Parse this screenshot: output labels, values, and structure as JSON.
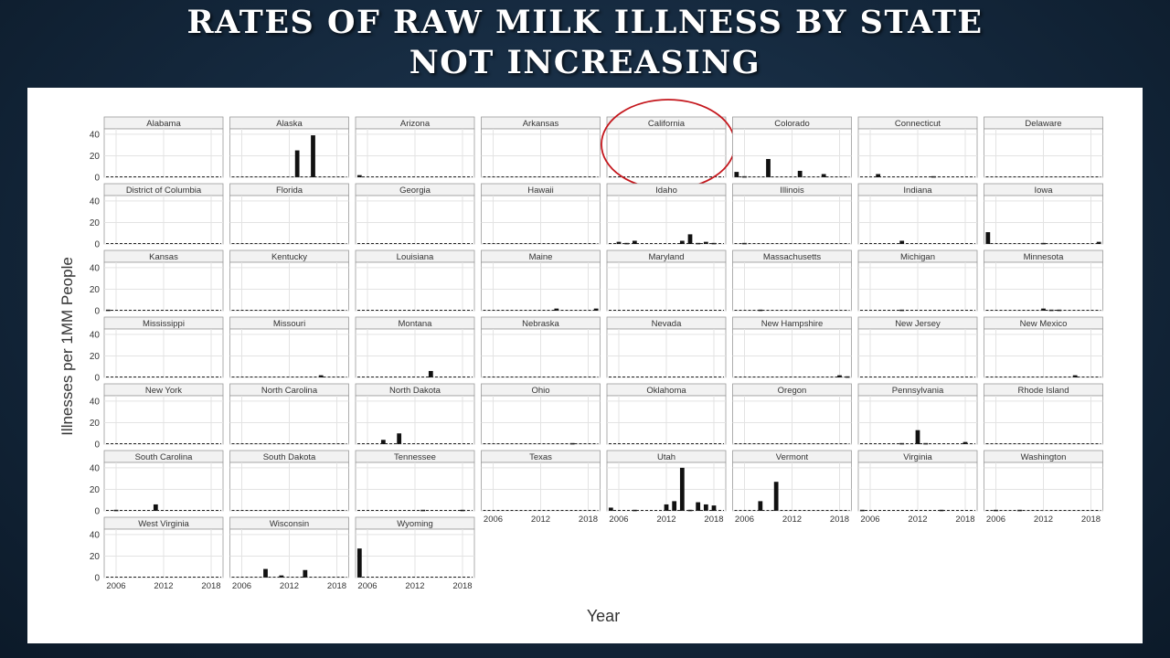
{
  "slide": {
    "title_line1": "RATES OF RAW MILK ILLNESS BY STATE",
    "title_line2": "NOT INCREASING"
  },
  "colors": {
    "bar": "#111111",
    "strip_fill": "#f2f2f2",
    "panel_border": "#9a9a9a",
    "grid": "#e3e3e3",
    "highlight_circle": "#c4161c"
  },
  "chart_data": {
    "type": "bar",
    "layout": "facet-grid",
    "xlabel": "Year",
    "ylabel": "Illnesses per 1MM People",
    "x": [
      2005,
      2006,
      2007,
      2008,
      2009,
      2010,
      2011,
      2012,
      2013,
      2014,
      2015,
      2016,
      2017,
      2018,
      2019
    ],
    "xticks": [
      2006,
      2012,
      2018
    ],
    "xlim": [
      2004.5,
      2019.5
    ],
    "yticks": [
      0,
      20,
      40
    ],
    "ylim": [
      0,
      45
    ],
    "grid": true,
    "highlighted_facet": "California",
    "facets": [
      {
        "name": "Alabama",
        "values": [
          0,
          0,
          0,
          0,
          0,
          0,
          0,
          0,
          0,
          0,
          0,
          0,
          0,
          0,
          0
        ]
      },
      {
        "name": "Alaska",
        "values": [
          0,
          0,
          0,
          0,
          0,
          0,
          0,
          0,
          25,
          0,
          39,
          0,
          0,
          0,
          0
        ]
      },
      {
        "name": "Arizona",
        "values": [
          2,
          0,
          0,
          0,
          0,
          0,
          0,
          0,
          0,
          0,
          0,
          0,
          0,
          0,
          0
        ]
      },
      {
        "name": "Arkansas",
        "values": [
          0,
          0,
          0,
          0,
          0,
          0,
          0,
          0,
          0,
          0,
          0,
          0,
          0,
          0,
          0
        ]
      },
      {
        "name": "California",
        "values": [
          0,
          0,
          0,
          0,
          0,
          0,
          0,
          0,
          0,
          0,
          0,
          0,
          0,
          0,
          0
        ]
      },
      {
        "name": "Colorado",
        "values": [
          5,
          1,
          0,
          0,
          17,
          0,
          0,
          0,
          6,
          0,
          0,
          3,
          0,
          0,
          0
        ]
      },
      {
        "name": "Connecticut",
        "values": [
          0,
          0,
          3,
          0,
          0,
          0,
          0,
          0,
          0,
          1,
          0,
          0,
          0,
          0,
          0
        ]
      },
      {
        "name": "Delaware",
        "values": [
          0,
          0,
          0,
          0,
          0,
          0,
          0,
          0,
          0,
          0,
          0,
          0,
          0,
          0,
          0
        ]
      },
      {
        "name": "District of Columbia",
        "values": [
          0,
          0,
          0,
          0,
          0,
          0,
          0,
          0,
          0,
          0,
          0,
          0,
          0,
          0,
          0
        ]
      },
      {
        "name": "Florida",
        "values": [
          0,
          0,
          0,
          0,
          0,
          0,
          0,
          0,
          0,
          0,
          0,
          0,
          0,
          0,
          0
        ]
      },
      {
        "name": "Georgia",
        "values": [
          0,
          0,
          0,
          0,
          0,
          0,
          0,
          0,
          0,
          0,
          0,
          0,
          0,
          0,
          0
        ]
      },
      {
        "name": "Hawaii",
        "values": [
          0,
          0,
          0,
          0,
          0,
          0,
          0,
          0,
          0,
          0,
          0,
          0,
          0,
          0,
          0
        ]
      },
      {
        "name": "Idaho",
        "values": [
          0,
          2,
          1,
          3,
          0,
          0,
          0,
          0,
          0,
          3,
          9,
          1,
          2,
          1,
          0
        ]
      },
      {
        "name": "Illinois",
        "values": [
          0,
          1,
          0,
          0,
          0,
          0,
          0,
          0,
          0,
          0,
          0,
          0,
          0,
          0,
          0
        ]
      },
      {
        "name": "Indiana",
        "values": [
          0,
          0,
          0,
          0,
          0,
          3,
          0,
          0,
          0,
          0,
          0,
          0,
          0,
          0,
          0
        ]
      },
      {
        "name": "Iowa",
        "values": [
          11,
          0,
          0,
          0,
          0,
          0,
          0,
          1,
          0,
          0,
          0,
          0,
          0,
          0,
          2
        ]
      },
      {
        "name": "Kansas",
        "values": [
          1,
          0,
          0,
          0,
          0,
          0,
          0,
          0,
          0,
          0,
          0,
          0,
          0,
          0,
          0
        ]
      },
      {
        "name": "Kentucky",
        "values": [
          0,
          0,
          0,
          0,
          0,
          0,
          0,
          0,
          0,
          0,
          0,
          0,
          0,
          0,
          0
        ]
      },
      {
        "name": "Louisiana",
        "values": [
          0,
          0,
          0,
          0,
          0,
          0,
          0,
          0,
          0,
          0,
          0,
          0,
          0,
          0,
          0
        ]
      },
      {
        "name": "Maine",
        "values": [
          0,
          0,
          0,
          0,
          0,
          0,
          0,
          0,
          0,
          2,
          0,
          0,
          0,
          0,
          2
        ]
      },
      {
        "name": "Maryland",
        "values": [
          0,
          0,
          0,
          0,
          0,
          0,
          0,
          0,
          0,
          0,
          0,
          0,
          0,
          0,
          0
        ]
      },
      {
        "name": "Massachusetts",
        "values": [
          0,
          0,
          0,
          1,
          0,
          0,
          0,
          0,
          0,
          0,
          0,
          0,
          0,
          0,
          0
        ]
      },
      {
        "name": "Michigan",
        "values": [
          0,
          0,
          0,
          0,
          0,
          1,
          0,
          0,
          0,
          0,
          0,
          0,
          0,
          0,
          0
        ]
      },
      {
        "name": "Minnesota",
        "values": [
          0,
          0,
          0,
          0,
          0,
          0,
          0,
          2,
          1,
          1,
          0,
          0,
          0,
          0,
          0
        ]
      },
      {
        "name": "Mississippi",
        "values": [
          0,
          0,
          0,
          0,
          0,
          0,
          0,
          0,
          0,
          0,
          0,
          0,
          0,
          0,
          0
        ]
      },
      {
        "name": "Missouri",
        "values": [
          0,
          0,
          0,
          0,
          0,
          0,
          0,
          0,
          0,
          0,
          0,
          2,
          0,
          0,
          0
        ]
      },
      {
        "name": "Montana",
        "values": [
          0,
          0,
          0,
          0,
          0,
          0,
          0,
          0,
          0,
          6,
          0,
          0,
          0,
          0,
          0
        ]
      },
      {
        "name": "Nebraska",
        "values": [
          0,
          0,
          0,
          0,
          0,
          0,
          0,
          0,
          0,
          0,
          0,
          0,
          0,
          0,
          0
        ]
      },
      {
        "name": "Nevada",
        "values": [
          0,
          0,
          0,
          0,
          0,
          0,
          0,
          0,
          0,
          0,
          0,
          0,
          0,
          0,
          0
        ]
      },
      {
        "name": "New Hampshire",
        "values": [
          0,
          0,
          0,
          0,
          0,
          0,
          0,
          0,
          0,
          0,
          0,
          0,
          0,
          2,
          1
        ]
      },
      {
        "name": "New Jersey",
        "values": [
          0,
          0,
          0,
          0,
          0,
          0,
          0,
          0,
          0,
          0,
          0,
          0,
          0,
          0,
          0
        ]
      },
      {
        "name": "New Mexico",
        "values": [
          0,
          0,
          0,
          0,
          0,
          0,
          0,
          0,
          0,
          0,
          0,
          2,
          0,
          0,
          0
        ]
      },
      {
        "name": "New York",
        "values": [
          0,
          0,
          0,
          0,
          0,
          0,
          0,
          0,
          0,
          0,
          0,
          0,
          0,
          0,
          0
        ]
      },
      {
        "name": "North Carolina",
        "values": [
          0,
          0,
          0,
          0,
          0,
          0,
          0,
          0,
          0,
          0,
          0,
          0,
          0,
          0,
          0
        ]
      },
      {
        "name": "North Dakota",
        "values": [
          0,
          0,
          0,
          4,
          0,
          10,
          0,
          0,
          0,
          0,
          0,
          0,
          0,
          0,
          0
        ]
      },
      {
        "name": "Ohio",
        "values": [
          0,
          0,
          0,
          0,
          0,
          0,
          0,
          0,
          0,
          0,
          0,
          1,
          0,
          0,
          0
        ]
      },
      {
        "name": "Oklahoma",
        "values": [
          0,
          0,
          0,
          0,
          0,
          0,
          0,
          0,
          0,
          0,
          0,
          0,
          0,
          0,
          0
        ]
      },
      {
        "name": "Oregon",
        "values": [
          0,
          0,
          0,
          0,
          0,
          0,
          0,
          0,
          0,
          0,
          0,
          0,
          0,
          0,
          0
        ]
      },
      {
        "name": "Pennsylvania",
        "values": [
          0,
          0,
          0,
          0,
          0,
          1,
          0,
          13,
          1,
          0,
          0,
          0,
          0,
          2,
          0
        ]
      },
      {
        "name": "Rhode Island",
        "values": [
          0,
          0,
          0,
          0,
          0,
          0,
          0,
          0,
          0,
          0,
          0,
          0,
          0,
          0,
          0
        ]
      },
      {
        "name": "South Carolina",
        "values": [
          0,
          1,
          0,
          0,
          0,
          0,
          6,
          0,
          0,
          0,
          0,
          0,
          0,
          0,
          0
        ]
      },
      {
        "name": "South Dakota",
        "values": [
          0,
          0,
          0,
          0,
          0,
          0,
          0,
          0,
          0,
          0,
          0,
          0,
          0,
          0,
          0
        ]
      },
      {
        "name": "Tennessee",
        "values": [
          0,
          0,
          0,
          0,
          0,
          0,
          0,
          0,
          1,
          0,
          0,
          0,
          0,
          1,
          0
        ]
      },
      {
        "name": "Texas",
        "values": [
          0,
          0,
          0,
          0,
          0,
          0,
          0,
          0,
          0,
          0,
          0,
          0,
          0,
          0,
          0
        ]
      },
      {
        "name": "Utah",
        "values": [
          3,
          0,
          0,
          1,
          0,
          0,
          0,
          6,
          9,
          40,
          1,
          8,
          6,
          5,
          0
        ]
      },
      {
        "name": "Vermont",
        "values": [
          0,
          0,
          0,
          9,
          0,
          27,
          0,
          0,
          0,
          0,
          0,
          0,
          0,
          0,
          0
        ]
      },
      {
        "name": "Virginia",
        "values": [
          1,
          0,
          0,
          0,
          0,
          0,
          0,
          0,
          0,
          0,
          1,
          0,
          0,
          0,
          0
        ]
      },
      {
        "name": "Washington",
        "values": [
          0,
          1,
          0,
          0,
          1,
          0,
          0,
          0,
          0,
          0,
          0,
          0,
          0,
          0,
          0
        ]
      },
      {
        "name": "West Virginia",
        "values": [
          0,
          0,
          0,
          0,
          0,
          0,
          0,
          0,
          0,
          0,
          0,
          0,
          0,
          0,
          0
        ]
      },
      {
        "name": "Wisconsin",
        "values": [
          0,
          0,
          0,
          0,
          8,
          0,
          2,
          0,
          0,
          7,
          0,
          0,
          0,
          0,
          0
        ]
      },
      {
        "name": "Wyoming",
        "values": [
          27,
          0,
          0,
          0,
          0,
          0,
          0,
          0,
          0,
          0,
          0,
          0,
          0,
          0,
          0
        ]
      }
    ]
  }
}
